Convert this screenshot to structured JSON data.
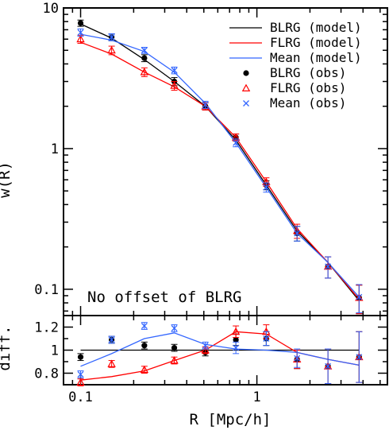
{
  "chart_data": [
    {
      "type": "line",
      "panel": "main",
      "ylabel": "w(R)",
      "xlim": [
        0.08,
        5.5
      ],
      "ylim": [
        0.065,
        10
      ],
      "xscale": "log",
      "yscale": "log",
      "grid": false,
      "legend_position": "top-right",
      "annotation": "No offset of BLRG",
      "x_ticks": [
        {
          "value": 0.1,
          "label": "0.1"
        },
        {
          "value": 1,
          "label": "1"
        }
      ],
      "y_ticks": [
        {
          "value": 0.1,
          "label": "0.1"
        },
        {
          "value": 1,
          "label": "1"
        },
        {
          "value": 10,
          "label": "10"
        }
      ],
      "legend": [
        "BLRG (model)",
        "FLRG (model)",
        "Mean (model)",
        "BLRG (obs)",
        "FLRG (obs)",
        "Mean (obs)"
      ],
      "series": [
        {
          "name": "BLRG (model)",
          "kind": "line",
          "color": "#000000",
          "x": [
            0.1,
            0.15,
            0.23,
            0.34,
            0.51,
            0.76,
            1.13,
            1.69,
            2.53,
            3.8
          ],
          "y": [
            7.7,
            6.1,
            4.3,
            3.0,
            2.0,
            1.15,
            0.55,
            0.26,
            0.155,
            0.083
          ]
        },
        {
          "name": "FLRG (model)",
          "kind": "line",
          "color": "#ff0000",
          "x": [
            0.1,
            0.15,
            0.23,
            0.34,
            0.51,
            0.76,
            1.13,
            1.69,
            2.53,
            3.8
          ],
          "y": [
            5.7,
            4.7,
            3.5,
            2.75,
            2.0,
            1.2,
            0.58,
            0.27,
            0.155,
            0.085
          ]
        },
        {
          "name": "Mean (model)",
          "kind": "line",
          "color": "#3366ff",
          "x": [
            0.1,
            0.15,
            0.23,
            0.34,
            0.51,
            0.76,
            1.13,
            1.69,
            2.53,
            3.8
          ],
          "y": [
            6.5,
            5.9,
            4.9,
            3.5,
            2.1,
            1.1,
            0.53,
            0.25,
            0.155,
            0.088
          ]
        },
        {
          "name": "BLRG (obs)",
          "kind": "points",
          "marker": "dot",
          "color": "#000000",
          "x": [
            0.1,
            0.15,
            0.23,
            0.34,
            0.51,
            0.76,
            1.13,
            1.69,
            2.53,
            3.8
          ],
          "y": [
            7.8,
            6.2,
            4.4,
            3.0,
            2.0,
            1.2,
            0.55,
            0.25,
            0.145,
            0.087
          ],
          "yerr": [
            0.4,
            0.35,
            0.25,
            0.2,
            0.12,
            0.07,
            0.04,
            0.03,
            0.025,
            0.02
          ]
        },
        {
          "name": "FLRG (obs)",
          "kind": "points",
          "marker": "triangle",
          "color": "#ff0000",
          "x": [
            0.1,
            0.15,
            0.23,
            0.34,
            0.51,
            0.76,
            1.13,
            1.69,
            2.53,
            3.8
          ],
          "y": [
            6.0,
            5.0,
            3.5,
            2.8,
            2.0,
            1.2,
            0.58,
            0.26,
            0.145,
            0.087
          ],
          "yerr": [
            0.4,
            0.35,
            0.25,
            0.2,
            0.12,
            0.07,
            0.04,
            0.03,
            0.025,
            0.02
          ]
        },
        {
          "name": "Mean (obs)",
          "kind": "points",
          "marker": "cross",
          "color": "#3366ff",
          "x": [
            0.1,
            0.15,
            0.23,
            0.34,
            0.51,
            0.76,
            1.13,
            1.69,
            2.53,
            3.8
          ],
          "y": [
            6.7,
            6.2,
            5.0,
            3.6,
            2.05,
            1.1,
            0.53,
            0.25,
            0.145,
            0.088
          ],
          "yerr": [
            0.4,
            0.35,
            0.25,
            0.2,
            0.12,
            0.07,
            0.04,
            0.03,
            0.025,
            0.02
          ]
        }
      ]
    },
    {
      "type": "line",
      "panel": "ratio",
      "ylabel": "diff.",
      "xlabel": "R [Mpc/h]",
      "xlim": [
        0.08,
        5.5
      ],
      "ylim": [
        0.7,
        1.3
      ],
      "xscale": "log",
      "grid": false,
      "reference_line": 1,
      "x_ticks": [
        {
          "value": 0.1,
          "label": "0.1"
        },
        {
          "value": 1,
          "label": "1"
        }
      ],
      "y_ticks": [
        {
          "value": 0.8,
          "label": "0.8"
        },
        {
          "value": 1,
          "label": "1"
        },
        {
          "value": 1.2,
          "label": "1.2"
        }
      ],
      "series": [
        {
          "name": "FLRG (model)",
          "kind": "line",
          "color": "#ff0000",
          "x": [
            0.1,
            0.15,
            0.23,
            0.34,
            0.51,
            0.76,
            1.13,
            1.69,
            2.53,
            3.8
          ],
          "y": [
            0.74,
            0.77,
            0.82,
            0.91,
            1.0,
            1.16,
            1.14,
            0.98,
            0.92,
            0.87
          ]
        },
        {
          "name": "Mean (model)",
          "kind": "line",
          "color": "#3366ff",
          "x": [
            0.1,
            0.15,
            0.23,
            0.34,
            0.51,
            0.76,
            1.13,
            1.69,
            2.53,
            3.8
          ],
          "y": [
            0.86,
            0.97,
            1.1,
            1.15,
            1.05,
            1.01,
            1.0,
            0.98,
            0.92,
            0.87
          ]
        },
        {
          "name": "BLRG (obs)",
          "kind": "points",
          "marker": "dot",
          "color": "#000000",
          "x": [
            0.1,
            0.15,
            0.23,
            0.34,
            0.51,
            0.76,
            1.13,
            1.69,
            2.53,
            3.8
          ],
          "y": [
            0.94,
            1.09,
            1.04,
            1.02,
            0.98,
            1.09,
            1.1,
            0.92,
            0.86,
            0.94
          ],
          "yerr": [
            0.03,
            0.03,
            0.03,
            0.03,
            0.03,
            0.05,
            0.06,
            0.08,
            0.15,
            0.22
          ]
        },
        {
          "name": "FLRG (obs)",
          "kind": "points",
          "marker": "triangle",
          "color": "#ff0000",
          "x": [
            0.1,
            0.15,
            0.23,
            0.34,
            0.51,
            0.76,
            1.13,
            1.69,
            2.53,
            3.8
          ],
          "y": [
            0.72,
            0.88,
            0.83,
            0.91,
            1.0,
            1.16,
            1.16,
            0.92,
            0.86,
            0.94
          ],
          "yerr": [
            0.03,
            0.03,
            0.03,
            0.03,
            0.03,
            0.05,
            0.06,
            0.08,
            0.15,
            0.22
          ]
        },
        {
          "name": "Mean (obs)",
          "kind": "points",
          "marker": "cross",
          "color": "#3366ff",
          "x": [
            0.1,
            0.15,
            0.23,
            0.34,
            0.51,
            0.76,
            1.13,
            1.69,
            2.53,
            3.8
          ],
          "y": [
            0.79,
            1.09,
            1.21,
            1.19,
            1.04,
            1.02,
            1.1,
            0.93,
            0.86,
            0.94
          ],
          "yerr": [
            0.03,
            0.03,
            0.03,
            0.03,
            0.03,
            0.05,
            0.06,
            0.08,
            0.15,
            0.22
          ]
        }
      ]
    }
  ]
}
